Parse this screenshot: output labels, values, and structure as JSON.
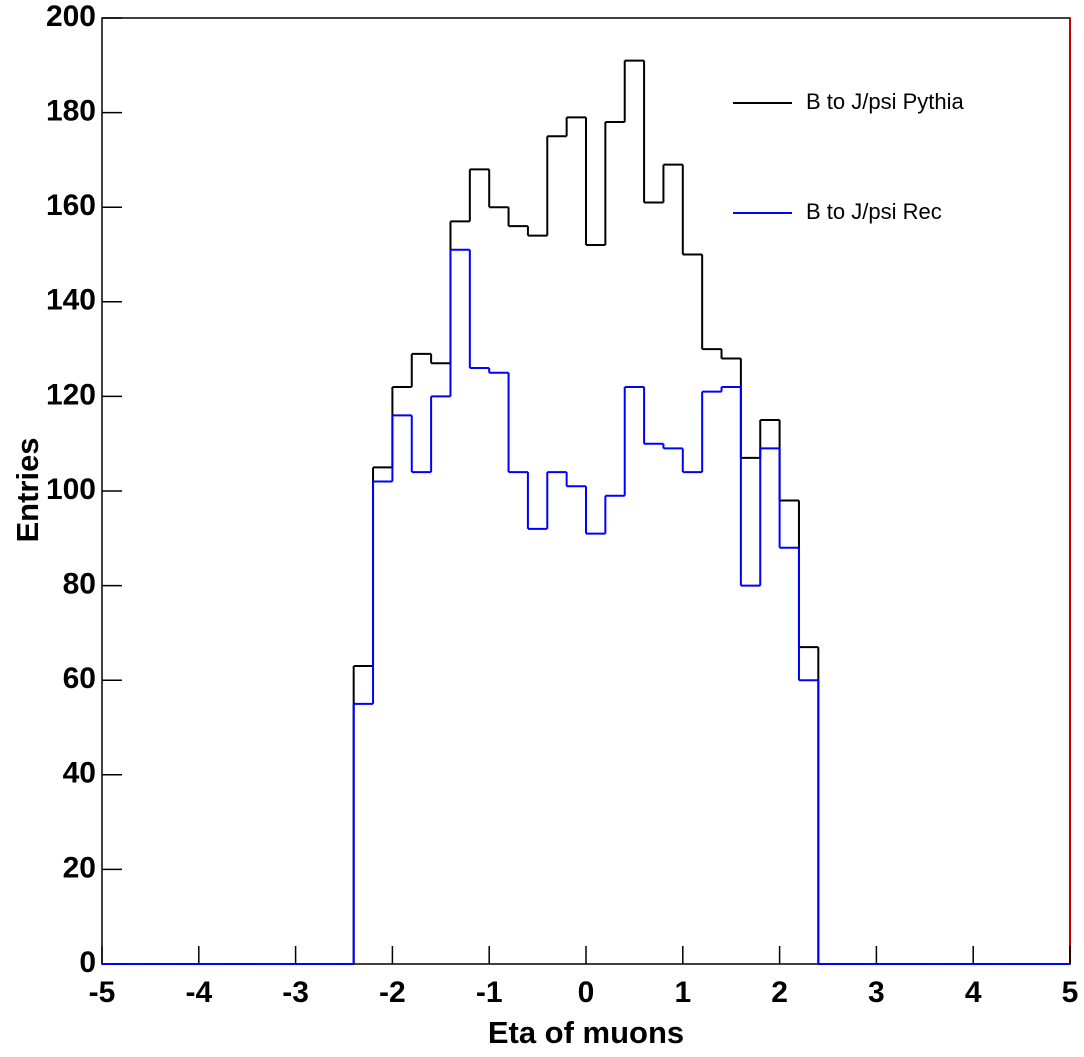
{
  "chart_data": {
    "type": "histogram",
    "x_label": "Eta of muons",
    "y_label": "Entries",
    "bins": [
      -5,
      -4.8,
      -4.6,
      -4.4,
      -4.2,
      -4,
      -3.8,
      -3.6,
      -3.4,
      -3.2,
      -3,
      -2.8,
      -2.6,
      -2.4,
      -2.2,
      -2,
      -1.8,
      -1.6,
      -1.4,
      -1.2,
      -1,
      -0.8,
      -0.6,
      -0.4,
      -0.2,
      0,
      0.2,
      0.4,
      0.6,
      0.8,
      1,
      1.2,
      1.4,
      1.6,
      1.8,
      2,
      2.2,
      2.4,
      2.6,
      2.8,
      3,
      3.2,
      3.4,
      3.6,
      3.8,
      4,
      4.2,
      4.4,
      4.6,
      4.8,
      5
    ],
    "series": [
      {
        "name": "B to J/psi Pythia",
        "color": "#000000",
        "values": [
          0,
          0,
          0,
          0,
          0,
          0,
          0,
          0,
          0,
          0,
          0,
          0,
          0,
          63,
          105,
          122,
          129,
          127,
          157,
          168,
          160,
          156,
          154,
          175,
          179,
          152,
          178,
          191,
          161,
          169,
          150,
          130,
          128,
          107,
          115,
          98,
          67,
          0,
          0,
          0,
          0,
          0,
          0,
          0,
          0,
          0,
          0,
          0,
          0,
          0
        ]
      },
      {
        "name": "B to J/psi Rec",
        "color": "#0000ff",
        "values": [
          0,
          0,
          0,
          0,
          0,
          0,
          0,
          0,
          0,
          0,
          0,
          0,
          0,
          55,
          102,
          116,
          104,
          120,
          151,
          126,
          125,
          104,
          92,
          104,
          101,
          91,
          99,
          122,
          110,
          109,
          104,
          121,
          122,
          80,
          109,
          88,
          60,
          0,
          0,
          0,
          0,
          0,
          0,
          0,
          0,
          0,
          0,
          0,
          0,
          0
        ]
      }
    ],
    "xlim": [
      -5,
      5
    ],
    "xticks": [
      -5,
      -4,
      -3,
      -2,
      -1,
      0,
      1,
      2,
      3,
      4,
      5
    ],
    "ylim": [
      0,
      200
    ],
    "yticks": [
      0,
      20,
      40,
      60,
      80,
      100,
      120,
      140,
      160,
      180,
      200
    ],
    "legend": "top-right"
  }
}
